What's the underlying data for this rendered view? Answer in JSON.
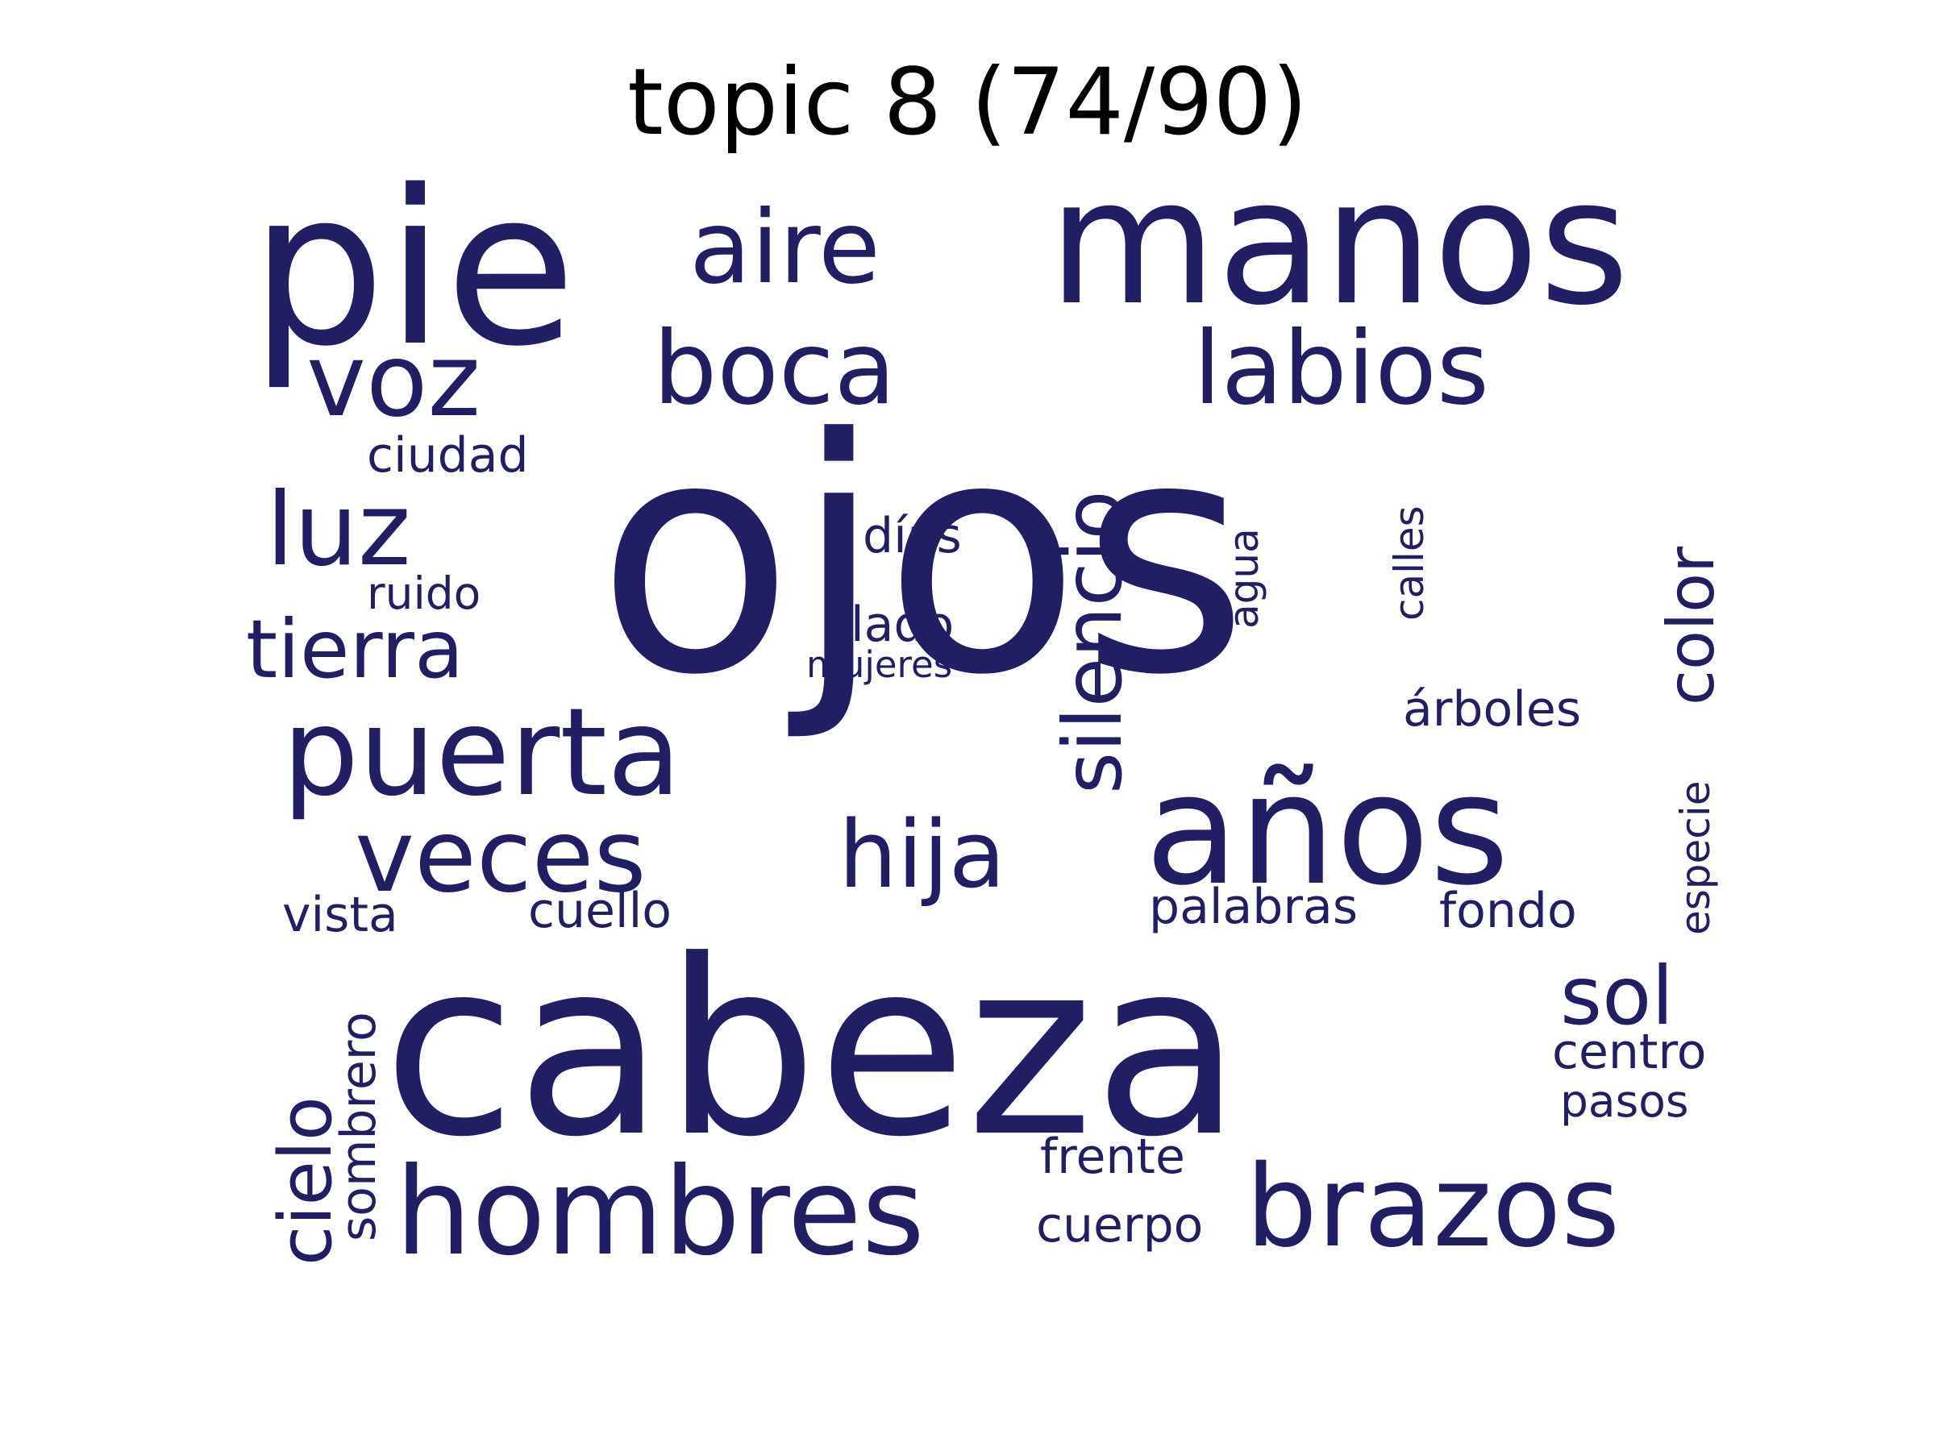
{
  "title": "topic 8 (74/90)",
  "word_color": "#211e64",
  "background_color": "#ffffff",
  "words": [
    {
      "text": "ojos",
      "orientation": "horizontal"
    },
    {
      "text": "cabeza",
      "orientation": "horizontal"
    },
    {
      "text": "manos",
      "orientation": "horizontal"
    },
    {
      "text": "pie",
      "orientation": "horizontal"
    },
    {
      "text": "años",
      "orientation": "horizontal"
    },
    {
      "text": "hombres",
      "orientation": "horizontal"
    },
    {
      "text": "puerta",
      "orientation": "horizontal"
    },
    {
      "text": "brazos",
      "orientation": "horizontal"
    },
    {
      "text": "veces",
      "orientation": "horizontal"
    },
    {
      "text": "boca",
      "orientation": "horizontal"
    },
    {
      "text": "labios",
      "orientation": "horizontal"
    },
    {
      "text": "aire",
      "orientation": "horizontal"
    },
    {
      "text": "voz",
      "orientation": "horizontal"
    },
    {
      "text": "luz",
      "orientation": "horizontal"
    },
    {
      "text": "silencio",
      "orientation": "vertical"
    },
    {
      "text": "hija",
      "orientation": "horizontal"
    },
    {
      "text": "tierra",
      "orientation": "horizontal"
    },
    {
      "text": "sol",
      "orientation": "horizontal"
    },
    {
      "text": "cielo",
      "orientation": "vertical"
    },
    {
      "text": "color",
      "orientation": "vertical"
    },
    {
      "text": "sombrero",
      "orientation": "vertical"
    },
    {
      "text": "cuerpo",
      "orientation": "horizontal"
    },
    {
      "text": "frente",
      "orientation": "horizontal"
    },
    {
      "text": "palabras",
      "orientation": "horizontal"
    },
    {
      "text": "cuello",
      "orientation": "horizontal"
    },
    {
      "text": "vista",
      "orientation": "horizontal"
    },
    {
      "text": "fondo",
      "orientation": "horizontal"
    },
    {
      "text": "centro",
      "orientation": "horizontal"
    },
    {
      "text": "pasos",
      "orientation": "horizontal"
    },
    {
      "text": "especie",
      "orientation": "vertical"
    },
    {
      "text": "árboles",
      "orientation": "horizontal"
    },
    {
      "text": "calles",
      "orientation": "vertical"
    },
    {
      "text": "ciudad",
      "orientation": "horizontal"
    },
    {
      "text": "días",
      "orientation": "horizontal"
    },
    {
      "text": "ruido",
      "orientation": "horizontal"
    },
    {
      "text": "lado",
      "orientation": "horizontal"
    },
    {
      "text": "agua",
      "orientation": "vertical"
    },
    {
      "text": "mujeres",
      "orientation": "horizontal"
    }
  ]
}
